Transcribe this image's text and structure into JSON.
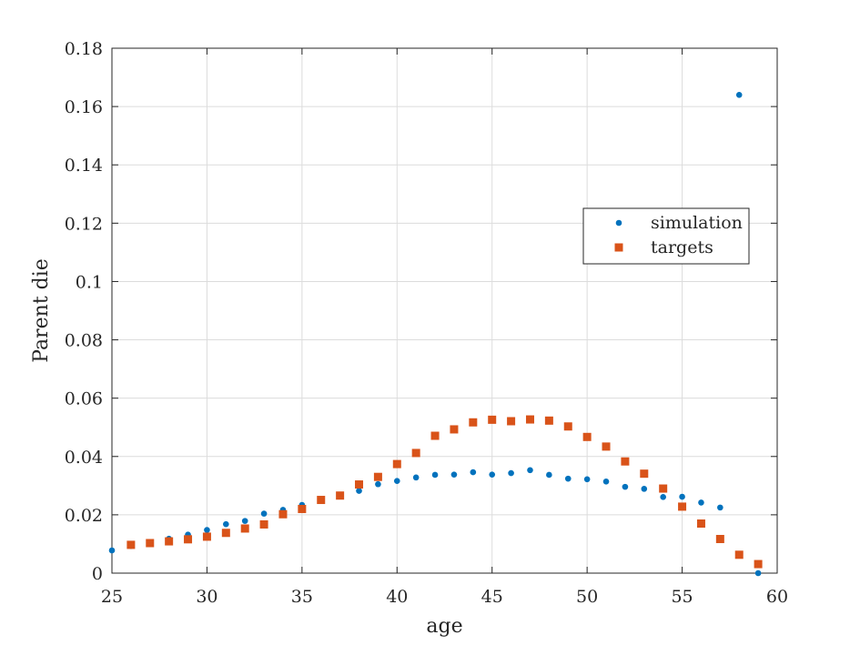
{
  "chart_data": {
    "type": "scatter",
    "title": "",
    "xlabel": "age",
    "ylabel": "Parent die",
    "xlim": [
      25,
      60
    ],
    "ylim": [
      0,
      0.18
    ],
    "xticks": [
      25,
      30,
      35,
      40,
      45,
      50,
      55,
      60
    ],
    "yticks": [
      0,
      0.02,
      0.04,
      0.06,
      0.08,
      0.1,
      0.12,
      0.14,
      0.16,
      0.18
    ],
    "xtick_labels": [
      "25",
      "30",
      "35",
      "40",
      "45",
      "50",
      "55",
      "60"
    ],
    "ytick_labels": [
      "0",
      "0.02",
      "0.04",
      "0.06",
      "0.08",
      "0.1",
      "0.12",
      "0.14",
      "0.16",
      "0.18"
    ],
    "grid": true,
    "legend_position": "right",
    "series": [
      {
        "name": "simulation",
        "marker": "circle",
        "color": "#0072BD",
        "x": [
          25,
          26,
          27,
          28,
          29,
          30,
          31,
          32,
          33,
          34,
          35,
          36,
          37,
          38,
          39,
          40,
          41,
          42,
          43,
          44,
          45,
          46,
          47,
          48,
          49,
          50,
          51,
          52,
          53,
          54,
          55,
          56,
          57,
          58,
          59
        ],
        "y": [
          0.0078,
          0.0093,
          0.0103,
          0.0118,
          0.0132,
          0.0148,
          0.0168,
          0.0179,
          0.0204,
          0.0217,
          0.0234,
          0.0248,
          0.0263,
          0.0282,
          0.0305,
          0.0316,
          0.0328,
          0.0337,
          0.0338,
          0.0346,
          0.0338,
          0.0343,
          0.0353,
          0.0337,
          0.0324,
          0.0322,
          0.0314,
          0.0296,
          0.0289,
          0.0261,
          0.0262,
          0.0242,
          0.0225,
          0.164,
          0.0
        ]
      },
      {
        "name": "targets",
        "marker": "square",
        "color": "#D95319",
        "x": [
          26,
          27,
          28,
          29,
          30,
          31,
          32,
          33,
          34,
          35,
          36,
          37,
          38,
          39,
          40,
          41,
          42,
          43,
          44,
          45,
          46,
          47,
          48,
          49,
          50,
          51,
          52,
          53,
          54,
          55,
          56,
          57,
          58,
          59
        ],
        "y": [
          0.0097,
          0.0103,
          0.0109,
          0.0116,
          0.0125,
          0.0138,
          0.0153,
          0.0167,
          0.0202,
          0.022,
          0.0251,
          0.0266,
          0.0304,
          0.033,
          0.0374,
          0.0412,
          0.0471,
          0.0493,
          0.0517,
          0.0526,
          0.0521,
          0.0527,
          0.0523,
          0.0503,
          0.0467,
          0.0434,
          0.0383,
          0.0341,
          0.029,
          0.0228,
          0.017,
          0.0117,
          0.0063,
          0.0031
        ]
      }
    ]
  }
}
